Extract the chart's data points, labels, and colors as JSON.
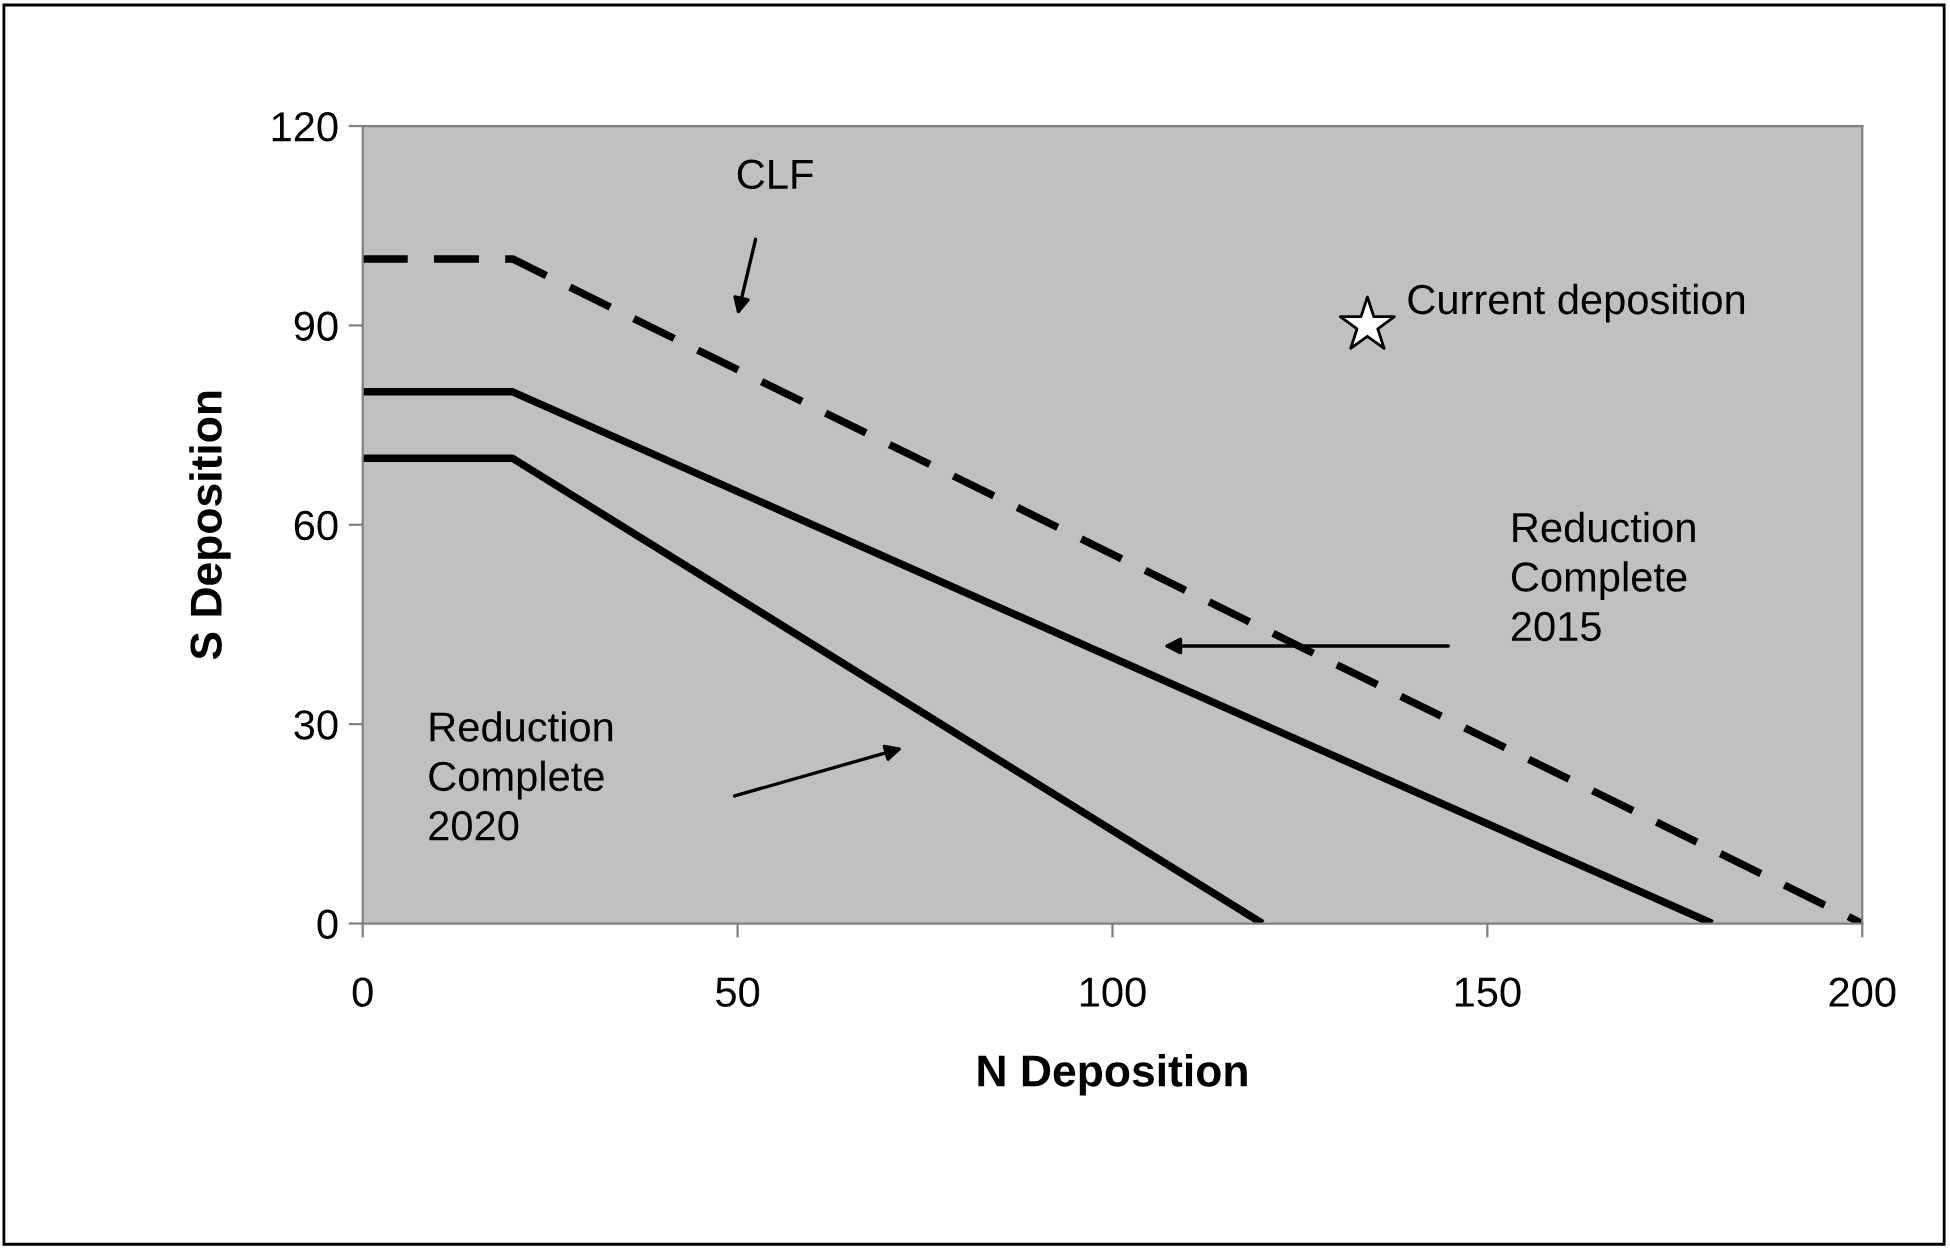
{
  "chart_data": {
    "type": "line",
    "xlabel": "N Deposition",
    "ylabel": "S Deposition",
    "xlim": [
      0,
      200
    ],
    "xticks": [
      0,
      50,
      100,
      150,
      200
    ],
    "ylim": [
      0,
      120
    ],
    "yticks": [
      0,
      30,
      60,
      90,
      120
    ],
    "grid": false,
    "legend": false,
    "series": [
      {
        "x": [
          0,
          20,
          200
        ],
        "values": [
          100,
          100,
          0
        ],
        "color": "#000000",
        "line_style": "dashed",
        "marker": "none"
      },
      {
        "x": [
          0,
          20,
          180
        ],
        "values": [
          80,
          80,
          0
        ],
        "color": "#000000",
        "line_style": "solid",
        "marker": "none"
      },
      {
        "x": [
          0,
          20,
          120
        ],
        "values": [
          70,
          70,
          0
        ],
        "color": "#000000",
        "line_style": "solid",
        "marker": "none"
      },
      {
        "type": "scatter",
        "name": "Current deposition",
        "x": [
          134
        ],
        "values": [
          90
        ],
        "color": "#ffffff",
        "marker": "star"
      }
    ],
    "annotations": [
      "CLF",
      "Reduction\nComplete\n2015",
      "Reduction\nComplete\n2020"
    ]
  }
}
